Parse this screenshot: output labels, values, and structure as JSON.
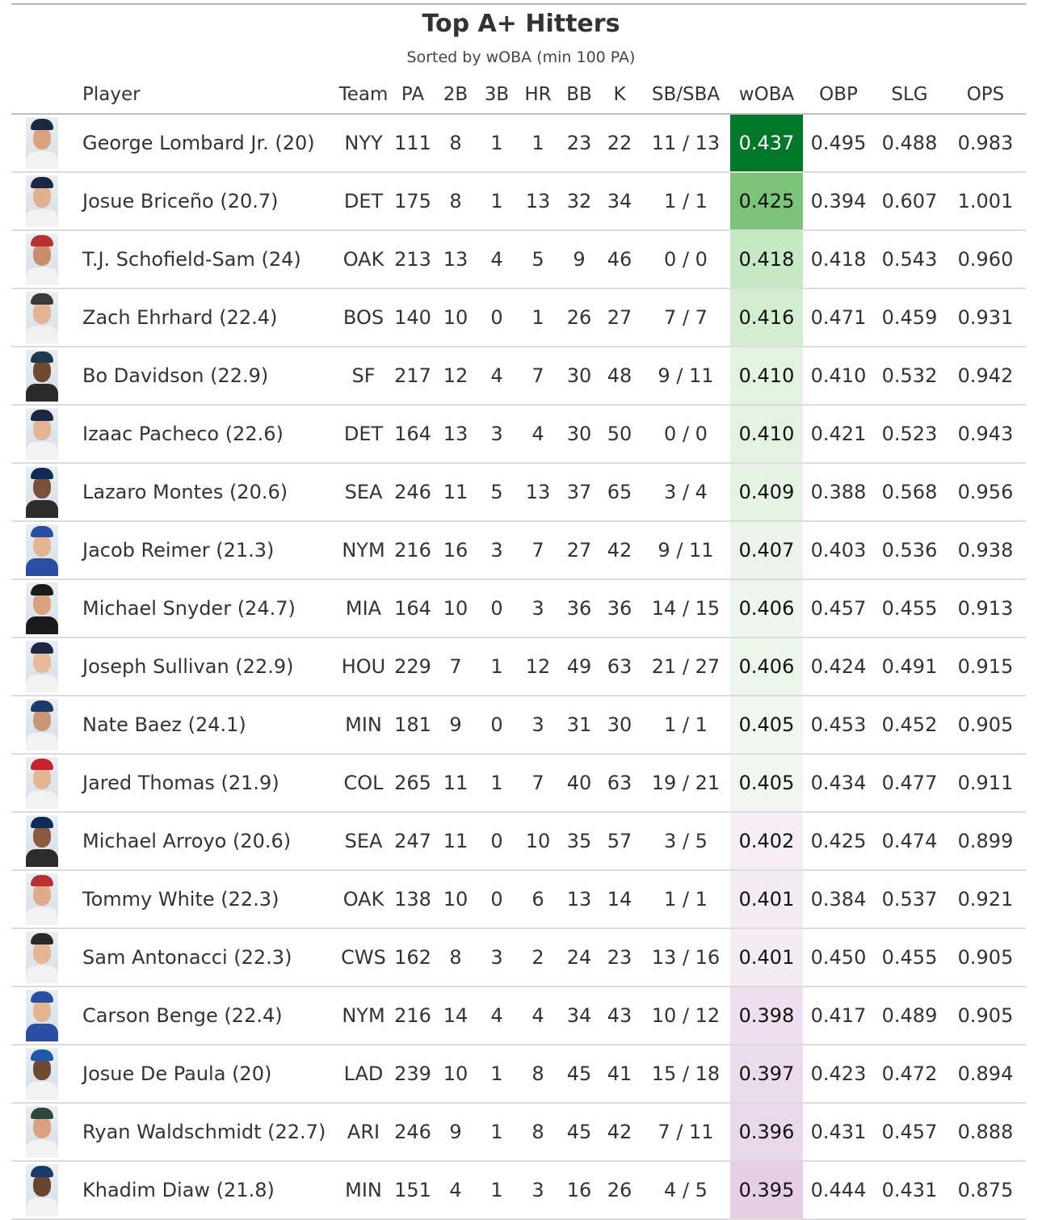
{
  "title": "Top A+ Hitters",
  "subtitle": "Sorted by wOBA (min 100 PA)",
  "columns": [
    "Player",
    "Team",
    "PA",
    "2B",
    "3B",
    "HR",
    "BB",
    "K",
    "SB/SBA",
    "wOBA",
    "OBP",
    "SLG",
    "OPS"
  ],
  "colors": {
    "woba_high": "#00782a",
    "woba_mid": "#f5f5f5",
    "woba_low": "#e6cfe6"
  },
  "rows": [
    {
      "player": "George Lombard Jr. (20)",
      "team": "NYY",
      "pa": "111",
      "doubles": "8",
      "triples": "1",
      "hr": "1",
      "bb": "23",
      "k": "22",
      "sb": "11 / 13",
      "woba": "0.437",
      "obp": "0.495",
      "slg": "0.488",
      "ops": "0.983",
      "cap_color": "#1c2841",
      "skin": "#d9a27f",
      "shirt": "#f2f2f2",
      "cell_bg": "#00782a",
      "cell_fg": "#ffffff"
    },
    {
      "player": "Josue Briceño (20.7)",
      "team": "DET",
      "pa": "175",
      "doubles": "8",
      "triples": "1",
      "hr": "13",
      "bb": "32",
      "k": "34",
      "sb": "1 / 1",
      "woba": "0.425",
      "obp": "0.394",
      "slg": "0.607",
      "ops": "1.001",
      "cap_color": "#1c2841",
      "skin": "#e0b090",
      "shirt": "#f2f2f2",
      "cell_bg": "#7cc47a",
      "cell_fg": "#111111"
    },
    {
      "player": "T.J. Schofield-Sam (24)",
      "team": "OAK",
      "pa": "213",
      "doubles": "13",
      "triples": "4",
      "hr": "5",
      "bb": "9",
      "k": "46",
      "sb": "0 / 0",
      "woba": "0.418",
      "obp": "0.418",
      "slg": "0.543",
      "ops": "0.960",
      "cap_color": "#b72f2f",
      "skin": "#c98e6c",
      "shirt": "#f2f2f2",
      "cell_bg": "#c6e9c3",
      "cell_fg": "#111111"
    },
    {
      "player": "Zach Ehrhard (22.4)",
      "team": "BOS",
      "pa": "140",
      "doubles": "10",
      "triples": "0",
      "hr": "1",
      "bb": "26",
      "k": "27",
      "sb": "7 / 7",
      "woba": "0.416",
      "obp": "0.471",
      "slg": "0.459",
      "ops": "0.931",
      "cap_color": "#3a3a3a",
      "skin": "#e2b494",
      "shirt": "#f0f0f0",
      "cell_bg": "#d3edd0",
      "cell_fg": "#111111"
    },
    {
      "player": "Bo Davidson (22.9)",
      "team": "SF",
      "pa": "217",
      "doubles": "12",
      "triples": "4",
      "hr": "7",
      "bb": "30",
      "k": "48",
      "sb": "9 / 11",
      "woba": "0.410",
      "obp": "0.410",
      "slg": "0.532",
      "ops": "0.942",
      "cap_color": "#1d3b4a",
      "skin": "#6e4a33",
      "shirt": "#2a2a2a",
      "cell_bg": "#e4f2e2",
      "cell_fg": "#111111"
    },
    {
      "player": "Izaac Pacheco (22.6)",
      "team": "DET",
      "pa": "164",
      "doubles": "13",
      "triples": "3",
      "hr": "4",
      "bb": "30",
      "k": "50",
      "sb": "0 / 0",
      "woba": "0.410",
      "obp": "0.421",
      "slg": "0.523",
      "ops": "0.943",
      "cap_color": "#1c2841",
      "skin": "#e3b595",
      "shirt": "#f2f2f2",
      "cell_bg": "#e4f2e2",
      "cell_fg": "#111111"
    },
    {
      "player": "Lazaro Montes (20.6)",
      "team": "SEA",
      "pa": "246",
      "doubles": "11",
      "triples": "5",
      "hr": "13",
      "bb": "37",
      "k": "65",
      "sb": "3 / 4",
      "woba": "0.409",
      "obp": "0.388",
      "slg": "0.568",
      "ops": "0.956",
      "cap_color": "#0c2c56",
      "skin": "#7a5038",
      "shirt": "#2c2c2c",
      "cell_bg": "#e6f3e4",
      "cell_fg": "#111111"
    },
    {
      "player": "Jacob Reimer (21.3)",
      "team": "NYM",
      "pa": "216",
      "doubles": "16",
      "triples": "3",
      "hr": "7",
      "bb": "27",
      "k": "42",
      "sb": "9 / 11",
      "woba": "0.407",
      "obp": "0.403",
      "slg": "0.536",
      "ops": "0.938",
      "cap_color": "#2b4fa3",
      "skin": "#e2b494",
      "shirt": "#2b4fa3",
      "cell_bg": "#ebf4e9",
      "cell_fg": "#111111"
    },
    {
      "player": "Michael Snyder (24.7)",
      "team": "MIA",
      "pa": "164",
      "doubles": "10",
      "triples": "0",
      "hr": "3",
      "bb": "36",
      "k": "36",
      "sb": "14 / 15",
      "woba": "0.406",
      "obp": "0.457",
      "slg": "0.455",
      "ops": "0.913",
      "cap_color": "#1a1a1a",
      "skin": "#d9a27f",
      "shirt": "#1a1a1a",
      "cell_bg": "#eef5ec",
      "cell_fg": "#111111"
    },
    {
      "player": "Joseph Sullivan (22.9)",
      "team": "HOU",
      "pa": "229",
      "doubles": "7",
      "triples": "1",
      "hr": "12",
      "bb": "49",
      "k": "63",
      "sb": "21 / 27",
      "woba": "0.406",
      "obp": "0.424",
      "slg": "0.491",
      "ops": "0.915",
      "cap_color": "#1c2841",
      "skin": "#e6b99b",
      "shirt": "#f2f2f2",
      "cell_bg": "#eef5ec",
      "cell_fg": "#111111"
    },
    {
      "player": "Nate Baez (24.1)",
      "team": "MIN",
      "pa": "181",
      "doubles": "9",
      "triples": "0",
      "hr": "3",
      "bb": "31",
      "k": "30",
      "sb": "1 / 1",
      "woba": "0.405",
      "obp": "0.453",
      "slg": "0.452",
      "ops": "0.905",
      "cap_color": "#1a3a6a",
      "skin": "#c99574",
      "shirt": "#f2f2f2",
      "cell_bg": "#f3f5f2",
      "cell_fg": "#111111"
    },
    {
      "player": "Jared Thomas (21.9)",
      "team": "COL",
      "pa": "265",
      "doubles": "11",
      "triples": "1",
      "hr": "7",
      "bb": "40",
      "k": "63",
      "sb": "19 / 21",
      "woba": "0.405",
      "obp": "0.434",
      "slg": "0.477",
      "ops": "0.911",
      "cap_color": "#c8202f",
      "skin": "#e2b494",
      "shirt": "#f2f2f2",
      "cell_bg": "#f3f5f2",
      "cell_fg": "#111111"
    },
    {
      "player": "Michael Arroyo (20.6)",
      "team": "SEA",
      "pa": "247",
      "doubles": "11",
      "triples": "0",
      "hr": "10",
      "bb": "35",
      "k": "57",
      "sb": "3 / 5",
      "woba": "0.402",
      "obp": "0.425",
      "slg": "0.474",
      "ops": "0.899",
      "cap_color": "#0c2c56",
      "skin": "#8a5a3e",
      "shirt": "#2c2c2c",
      "cell_bg": "#f5eff5",
      "cell_fg": "#111111"
    },
    {
      "player": "Tommy White (22.3)",
      "team": "OAK",
      "pa": "138",
      "doubles": "10",
      "triples": "0",
      "hr": "6",
      "bb": "13",
      "k": "14",
      "sb": "1 / 1",
      "woba": "0.401",
      "obp": "0.384",
      "slg": "0.537",
      "ops": "0.921",
      "cap_color": "#b72f2f",
      "skin": "#e0ab8c",
      "shirt": "#f2f2f2",
      "cell_bg": "#f3ecf3",
      "cell_fg": "#111111"
    },
    {
      "player": "Sam Antonacci (22.3)",
      "team": "CWS",
      "pa": "162",
      "doubles": "8",
      "triples": "3",
      "hr": "2",
      "bb": "24",
      "k": "23",
      "sb": "13 / 16",
      "woba": "0.401",
      "obp": "0.450",
      "slg": "0.455",
      "ops": "0.905",
      "cap_color": "#2a2a2a",
      "skin": "#e3b595",
      "shirt": "#f2f2f2",
      "cell_bg": "#f3ecf3",
      "cell_fg": "#111111"
    },
    {
      "player": "Carson Benge (22.4)",
      "team": "NYM",
      "pa": "216",
      "doubles": "14",
      "triples": "4",
      "hr": "4",
      "bb": "34",
      "k": "43",
      "sb": "10 / 12",
      "woba": "0.398",
      "obp": "0.417",
      "slg": "0.489",
      "ops": "0.905",
      "cap_color": "#2b4fa3",
      "skin": "#e2b494",
      "shirt": "#2b4fa3",
      "cell_bg": "#eddfed",
      "cell_fg": "#111111"
    },
    {
      "player": "Josue De Paula (20)",
      "team": "LAD",
      "pa": "239",
      "doubles": "10",
      "triples": "1",
      "hr": "8",
      "bb": "45",
      "k": "41",
      "sb": "15 / 18",
      "woba": "0.397",
      "obp": "0.423",
      "slg": "0.472",
      "ops": "0.894",
      "cap_color": "#1e5aa8",
      "skin": "#6e4a33",
      "shirt": "#f2f2f2",
      "cell_bg": "#ebdceb",
      "cell_fg": "#111111"
    },
    {
      "player": "Ryan Waldschmidt (22.7)",
      "team": "ARI",
      "pa": "246",
      "doubles": "9",
      "triples": "1",
      "hr": "8",
      "bb": "45",
      "k": "42",
      "sb": "7 / 11",
      "woba": "0.396",
      "obp": "0.431",
      "slg": "0.457",
      "ops": "0.888",
      "cap_color": "#2c4a3a",
      "skin": "#d9a27f",
      "shirt": "#f2f2f2",
      "cell_bg": "#e9d8e9",
      "cell_fg": "#111111"
    },
    {
      "player": "Khadim Diaw (21.8)",
      "team": "MIN",
      "pa": "151",
      "doubles": "4",
      "triples": "1",
      "hr": "3",
      "bb": "16",
      "k": "26",
      "sb": "4 / 5",
      "woba": "0.395",
      "obp": "0.444",
      "slg": "0.431",
      "ops": "0.875",
      "cap_color": "#1a3a6a",
      "skin": "#6a4532",
      "shirt": "#f2f2f2",
      "cell_bg": "#e6cfe6",
      "cell_fg": "#111111"
    }
  ]
}
